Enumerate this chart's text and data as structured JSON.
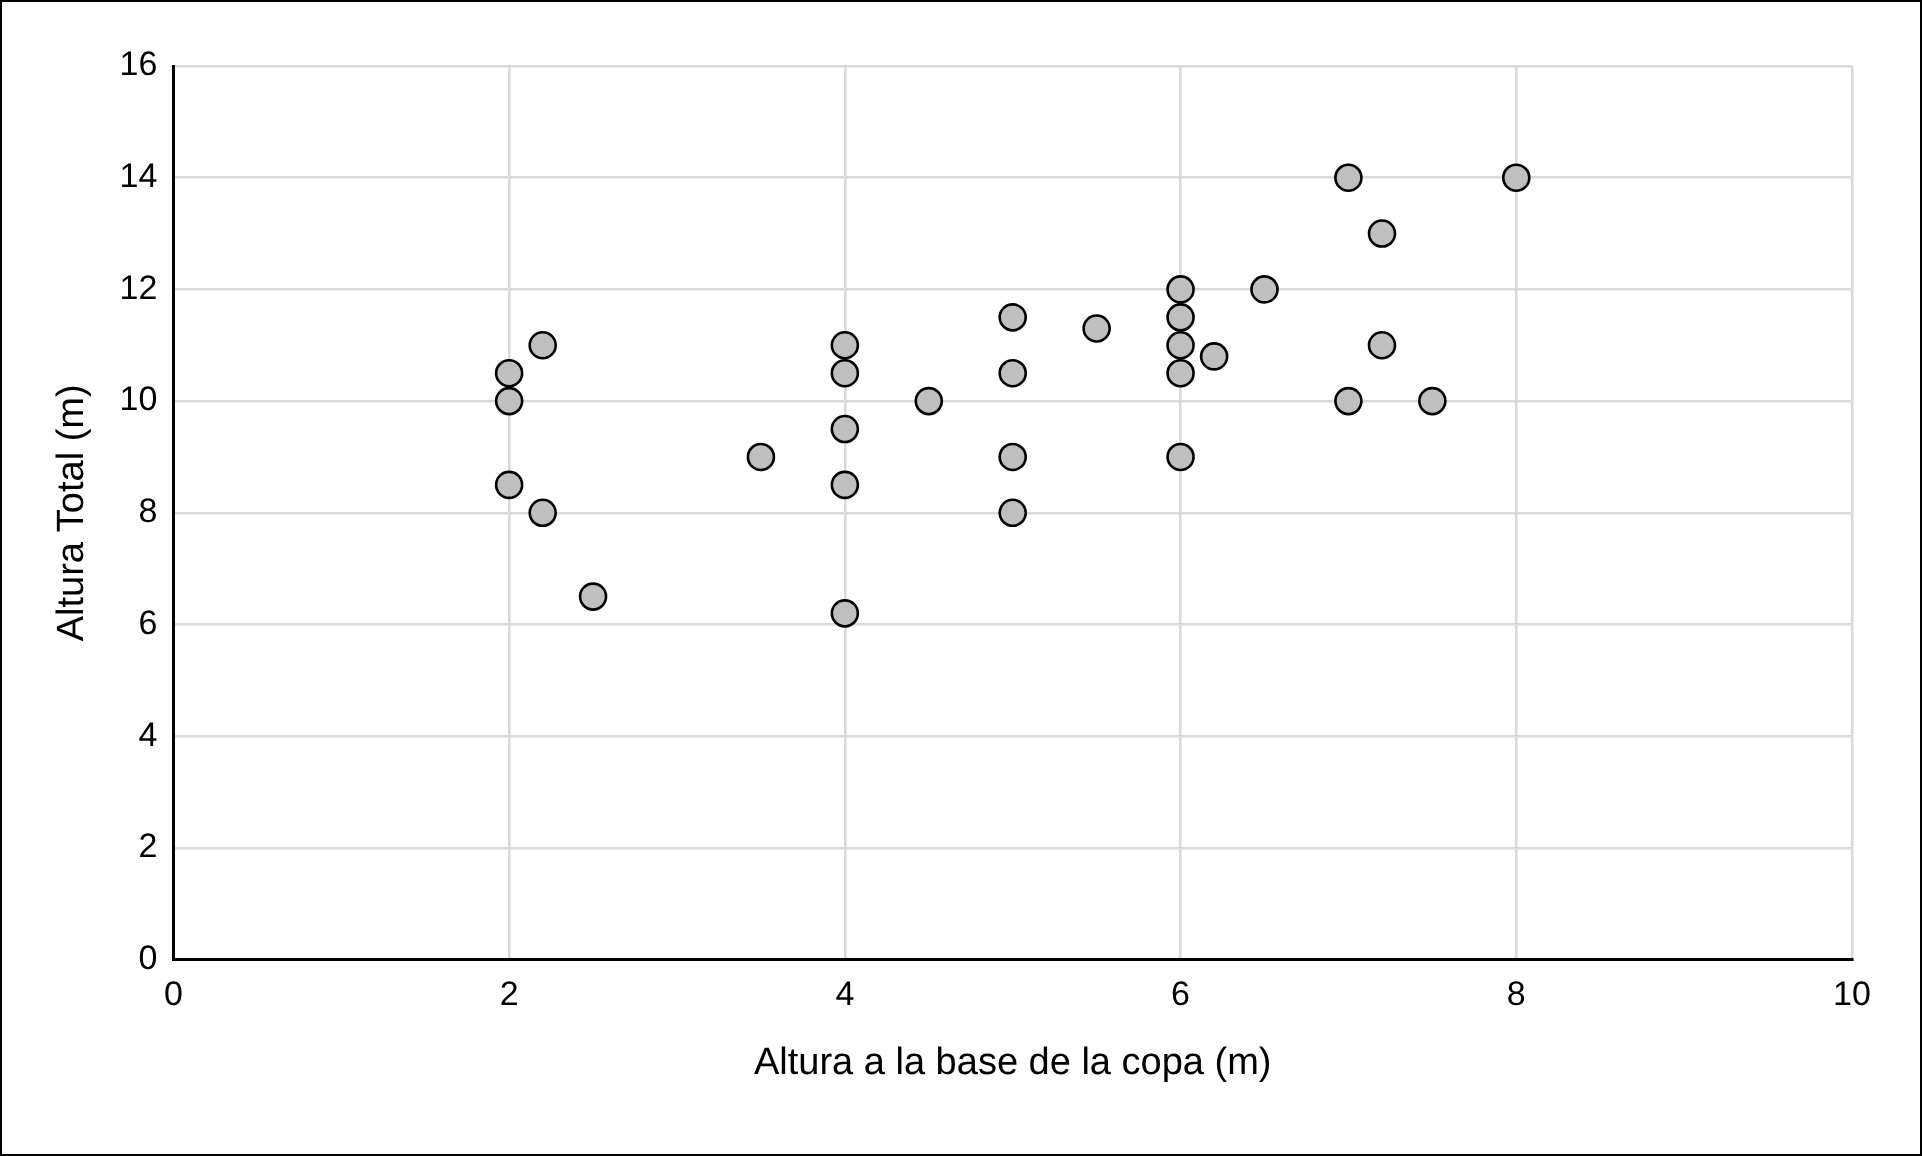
{
  "chart_data": {
    "type": "scatter",
    "xlabel": "Altura a la base de la copa (m)",
    "ylabel": "Altura Total (m)",
    "xlim": [
      0,
      10
    ],
    "xticks": [
      0,
      2,
      4,
      6,
      8,
      10
    ],
    "ylim": [
      0,
      16
    ],
    "yticks": [
      0,
      2,
      4,
      6,
      8,
      10,
      12,
      14,
      16
    ],
    "grid": true,
    "marker": "circle",
    "series": [
      {
        "color": "#bfbfbf",
        "x": [
          2,
          2,
          2,
          2.2,
          2.2,
          2.5,
          3.5,
          4,
          4,
          4,
          4,
          4,
          4.5,
          5,
          5,
          5,
          5,
          5.5,
          6,
          6,
          6,
          6,
          6,
          6.2,
          6.5,
          7,
          7,
          7.2,
          7.2,
          7.5,
          8
        ],
        "values": [
          10.5,
          10,
          8.5,
          11,
          8,
          6.5,
          9,
          11,
          10.5,
          9.5,
          8.5,
          6.2,
          10,
          11.5,
          10.5,
          9,
          8,
          11.3,
          12,
          11.5,
          11,
          10.5,
          9,
          10.8,
          12,
          14,
          10,
          13,
          11,
          10,
          14
        ]
      }
    ]
  }
}
